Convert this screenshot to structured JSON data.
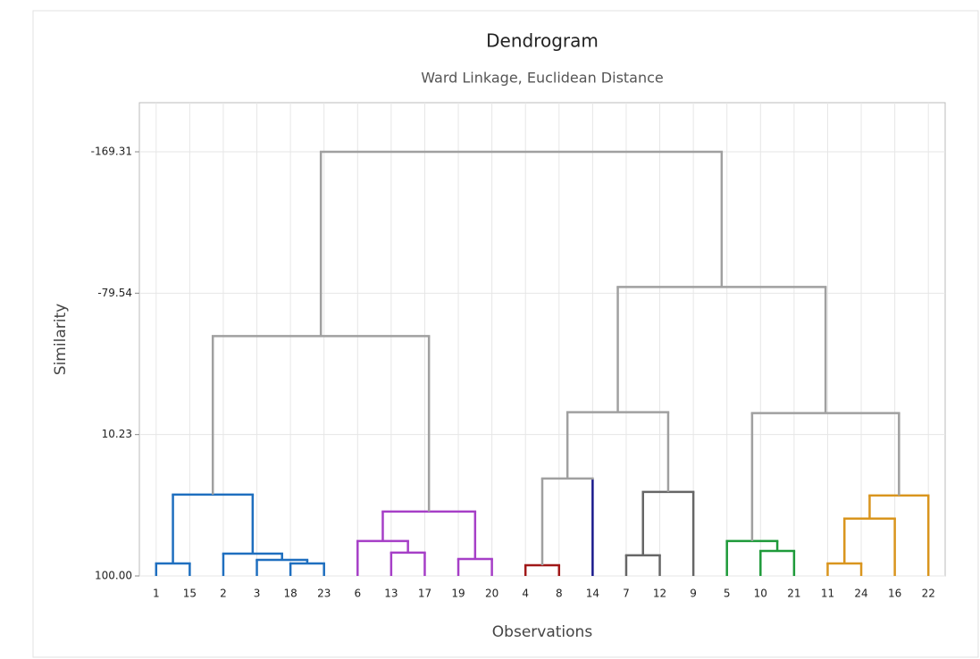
{
  "chart_data": {
    "type": "dendrogram",
    "title": "Dendrogram",
    "subtitle": "Ward Linkage, Euclidean Distance",
    "x_label": "Observations",
    "y_label": "Similarity",
    "categories": [
      "1",
      "15",
      "2",
      "3",
      "18",
      "23",
      "6",
      "13",
      "17",
      "19",
      "20",
      "4",
      "8",
      "14",
      "7",
      "12",
      "9",
      "5",
      "10",
      "21",
      "11",
      "24",
      "16",
      "22"
    ],
    "leaf_colors": [
      "#1f6fbf",
      "#1f6fbf",
      "#1f6fbf",
      "#1f6fbf",
      "#1f6fbf",
      "#1f6fbf",
      "#a63fc7",
      "#a63fc7",
      "#a63fc7",
      "#a63fc7",
      "#a63fc7",
      "#a01818",
      "#a01818",
      "#1a1a8c",
      "#666666",
      "#666666",
      "#666666",
      "#1e9a3a",
      "#1e9a3a",
      "#1e9a3a",
      "#d9951e",
      "#d9951e",
      "#d9951e",
      "#d9951e"
    ],
    "merges": [
      {
        "left": 0,
        "right": 1,
        "height": 92.05,
        "color": "#1f6fbf"
      },
      {
        "left": 4,
        "right": 5,
        "height": 92.05,
        "color": "#1f6fbf"
      },
      {
        "left": 3,
        "right": 25,
        "height": 89.77,
        "color": "#1f6fbf"
      },
      {
        "left": 2,
        "right": 26,
        "height": 85.8,
        "color": "#1f6fbf"
      },
      {
        "left": 24,
        "right": 27,
        "height": 48.3,
        "color": "#1f6fbf"
      },
      {
        "left": 7,
        "right": 8,
        "height": 85.2,
        "color": "#a63fc7"
      },
      {
        "left": 6,
        "right": 29,
        "height": 77.8,
        "color": "#a63fc7"
      },
      {
        "left": 9,
        "right": 10,
        "height": 89.2,
        "color": "#a63fc7"
      },
      {
        "left": 30,
        "right": 31,
        "height": 59.1,
        "color": "#a63fc7"
      },
      {
        "left": 28,
        "right": 32,
        "height": -52.3,
        "color": "#a0a0a0"
      },
      {
        "left": 11,
        "right": 12,
        "height": 93.2,
        "color": "#a01818"
      },
      {
        "left": 34,
        "right": 13,
        "height": 38.1,
        "color": "#a0a0a0"
      },
      {
        "left": 14,
        "right": 15,
        "height": 86.9,
        "color": "#666666"
      },
      {
        "left": 36,
        "right": 16,
        "height": 46.6,
        "color": "#666666"
      },
      {
        "left": 35,
        "right": 37,
        "height": -4.0,
        "color": "#a0a0a0"
      },
      {
        "left": 18,
        "right": 19,
        "height": 84.1,
        "color": "#1e9a3a"
      },
      {
        "left": 17,
        "right": 39,
        "height": 77.8,
        "color": "#1e9a3a"
      },
      {
        "left": 20,
        "right": 21,
        "height": 92.05,
        "color": "#d9951e"
      },
      {
        "left": 41,
        "right": 22,
        "height": 63.6,
        "color": "#d9951e"
      },
      {
        "left": 42,
        "right": 23,
        "height": 48.9,
        "color": "#d9951e"
      },
      {
        "left": 40,
        "right": 43,
        "height": -3.4,
        "color": "#a0a0a0"
      },
      {
        "left": 38,
        "right": 44,
        "height": -83.5,
        "color": "#a0a0a0"
      },
      {
        "left": 33,
        "right": 45,
        "height": -169.31,
        "color": "#a0a0a0"
      }
    ],
    "ylim": [
      100,
      -200.5
    ],
    "yticks": [
      {
        "value": 100,
        "label": "100.00"
      },
      10.23,
      -79.54,
      -169.31
    ],
    "grid": true
  }
}
